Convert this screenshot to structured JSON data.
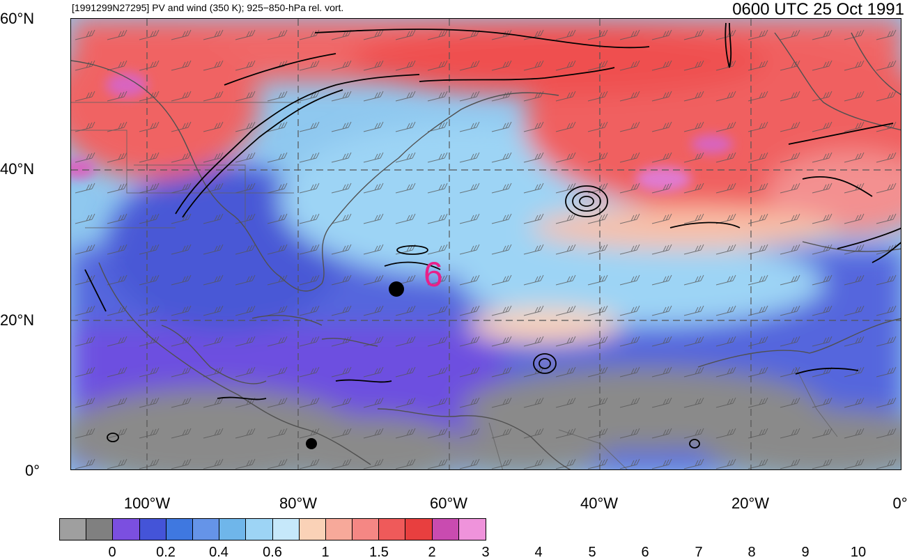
{
  "header": {
    "left_text": "[1991299N27295] PV and wind (350 K); 925−850-hPa rel. vort.",
    "right_text": "0600 UTC 25 Oct 1991"
  },
  "lat_labels": [
    "60°N",
    "40°N",
    "20°N",
    "0°"
  ],
  "lon_labels": [
    "100°W",
    "80°W",
    "60°W",
    "40°W",
    "20°W",
    "0°"
  ],
  "storm_marker": {
    "glyph": "6",
    "color": "#e8208a",
    "lon": -64,
    "lat": 27
  },
  "colorbar": {
    "colors": [
      "#9f9f9f",
      "#808080",
      "#7b4fe0",
      "#4454d8",
      "#3f78e0",
      "#6594e8",
      "#6fb6ea",
      "#9dd4f5",
      "#c6e8fa",
      "#fad2b7",
      "#f7a99a",
      "#f58784",
      "#ef5a5a",
      "#e83f3f",
      "#c94bb0",
      "#ef93db"
    ],
    "labels": [
      "0",
      "0.2",
      "0.4",
      "0.6",
      "1",
      "1.5",
      "2",
      "3",
      "4",
      "5",
      "6",
      "7",
      "8",
      "9",
      "10"
    ]
  },
  "map": {
    "lon_range": [
      -110,
      0
    ],
    "lat_range": [
      0,
      60
    ],
    "gridlines": {
      "lons": [
        -100,
        -80,
        -60,
        -40,
        -20
      ],
      "lats": [
        20,
        40
      ]
    },
    "vorticity_centers": [
      [
        -66,
        25
      ],
      [
        -78,
        3
      ]
    ]
  }
}
